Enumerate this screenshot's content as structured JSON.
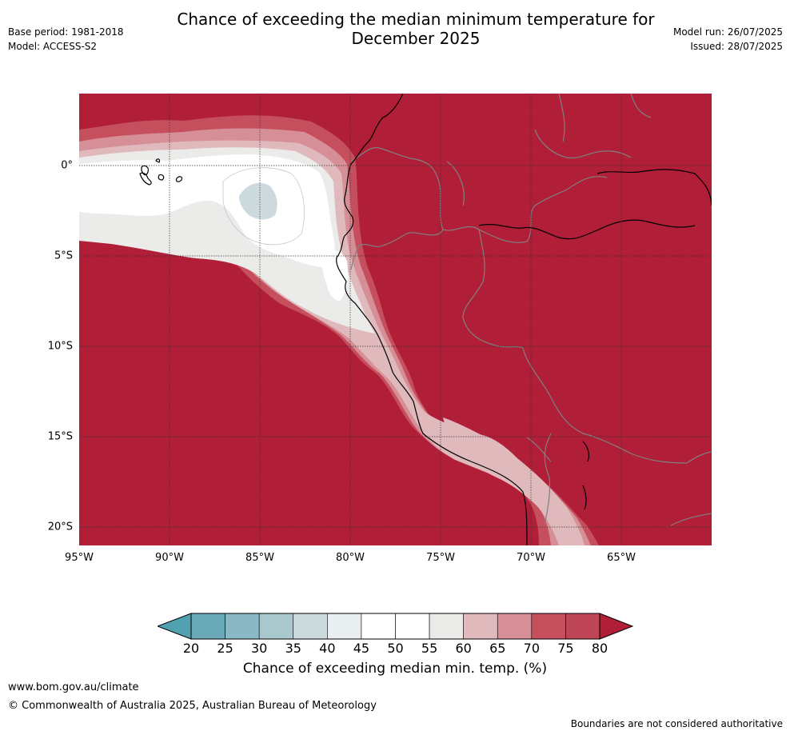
{
  "header": {
    "title_line1": "Chance of exceeding the median minimum temperature for",
    "title_line2": "December 2025",
    "base_period": "Base period: 1981-2018",
    "model": "Model: ACCESS-S2",
    "model_run": "Model run: 26/07/2025",
    "issued": "Issued: 28/07/2025"
  },
  "map": {
    "lat_labels": [
      "0°",
      "5°S",
      "10°S",
      "15°S",
      "20°S"
    ],
    "lon_labels": [
      "95°W",
      "90°W",
      "85°W",
      "80°W",
      "75°W",
      "70°W",
      "65°W"
    ],
    "colors": {
      "c75_80": "#b01e38",
      "c70_75": "#c64f5e",
      "c65_70": "#d68f96",
      "c60_65": "#e0b9bd",
      "c55_60": "#ebebe9",
      "c50_55": "#ffffff",
      "c35_40": "#ccdadd",
      "coast": "#000000",
      "border": "#808080",
      "grid": "#333333"
    }
  },
  "colorbar": {
    "title": "Chance of exceeding median min. temp. (%)",
    "ticks": [
      "20",
      "25",
      "30",
      "35",
      "40",
      "45",
      "50",
      "55",
      "60",
      "65",
      "70",
      "75",
      "80"
    ],
    "colors": [
      "#6aa9b8",
      "#8ab9c5",
      "#a8c8ce",
      "#ccdadd",
      "#e9eef1",
      "#ffffff",
      "#ffffff",
      "#ebebe9",
      "#e0b9bd",
      "#d68f96",
      "#c64f5e",
      "#be4656"
    ],
    "under_color": "#52a1b0",
    "over_color": "#b01e38"
  },
  "footer": {
    "url": "www.bom.gov.au/climate",
    "copyright": "© Commonwealth of Australia 2025, Australian Bureau of Meteorology",
    "disclaimer": "Boundaries are not considered authoritative"
  }
}
